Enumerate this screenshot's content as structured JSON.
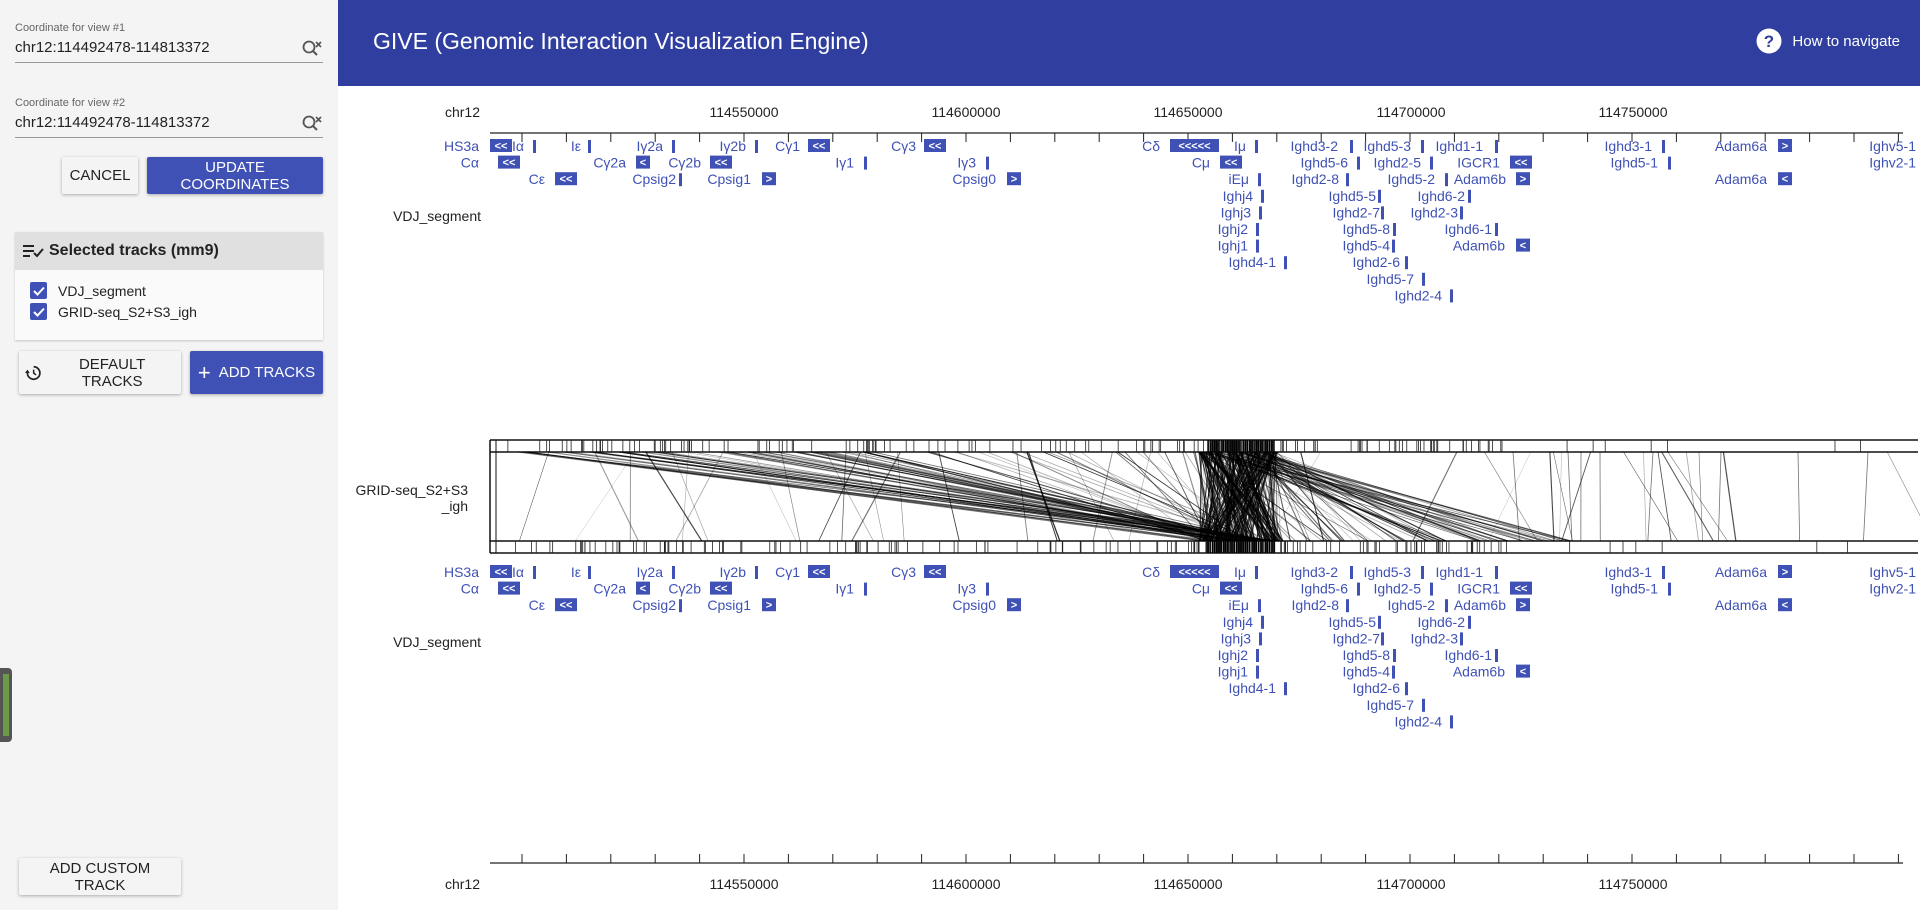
{
  "sidebar": {
    "view1": {
      "label": "Coordinate for view #1",
      "value": "chr12:114492478-114813372"
    },
    "view2": {
      "label": "Coordinate for view #2",
      "value": "chr12:114492478-114813372"
    },
    "cancel_label": "CANCEL",
    "update_label": "UPDATE COORDINATES",
    "tracks_title": "Selected tracks (mm9)",
    "tracks": [
      "VDJ_segment",
      "GRID-seq_S2+S3_igh"
    ],
    "default_tracks_label": "DEFAULT TRACKS",
    "add_tracks_label": "ADD TRACKS",
    "add_custom_label": "ADD CUSTOM TRACK"
  },
  "header": {
    "title": "GIVE (Genomic Interaction Visualization Engine)",
    "help_label": "How to navigate"
  },
  "viewer": {
    "chromosome": "chr12",
    "ticks": [
      "114550000",
      "114600000",
      "114650000",
      "114700000",
      "114750000"
    ],
    "track_labels": {
      "vdj_top": "VDJ_segment",
      "grid_line1": "GRID-seq_S2+S3",
      "grid_line2": "_igh",
      "vdj_bottom": "VDJ_segment"
    },
    "genes": [
      {
        "n": "HS3a",
        "g": "<<"
      },
      {
        "n": "Iα",
        "g": "|"
      },
      {
        "n": "Iε",
        "g": "|"
      },
      {
        "n": "Iγ2a",
        "g": "|"
      },
      {
        "n": "Iγ2b",
        "g": "|"
      },
      {
        "n": "Cγ1",
        "g": "<<"
      },
      {
        "n": "Cγ3",
        "g": "<<"
      },
      {
        "n": "Cδ",
        "g": "<<<<<"
      },
      {
        "n": "Iμ",
        "g": "|"
      },
      {
        "n": "Ighd3-2",
        "g": "|"
      },
      {
        "n": "Ighd5-3",
        "g": "|"
      },
      {
        "n": "Ighd1-1",
        "g": "|"
      },
      {
        "n": "Ighd3-1",
        "g": "|"
      },
      {
        "n": "Adam6a",
        "g": ">"
      },
      {
        "n": "Ighv5-1",
        "g": "|"
      },
      {
        "n": "Cα",
        "g": "<<"
      },
      {
        "n": "Cγ2a",
        "g": "<"
      },
      {
        "n": "Cγ2b",
        "g": "<<"
      },
      {
        "n": "Iγ1",
        "g": "|"
      },
      {
        "n": "Iγ3",
        "g": "|"
      },
      {
        "n": "Cμ",
        "g": "<<"
      },
      {
        "n": "Ighd5-6",
        "g": "|"
      },
      {
        "n": "Ighd2-5",
        "g": "|"
      },
      {
        "n": "IGCR1",
        "g": "<<"
      },
      {
        "n": "Ighd5-1",
        "g": "|"
      },
      {
        "n": "Ighv2-1",
        "g": ""
      },
      {
        "n": "Cε",
        "g": "<<"
      },
      {
        "n": "Cpsig2",
        "g": "|"
      },
      {
        "n": "Cpsig1",
        "g": ">"
      },
      {
        "n": "Cpsig0",
        "g": ">"
      },
      {
        "n": "iEμ",
        "g": "|"
      },
      {
        "n": "Ighd2-8",
        "g": "|"
      },
      {
        "n": "Ighd5-2",
        "g": "|"
      },
      {
        "n": "Adam6b",
        "g": ">"
      },
      {
        "n": "Adam6a",
        "g": "<"
      },
      {
        "n": "Ighj4",
        "g": "|"
      },
      {
        "n": "Ighd5-5",
        "g": "|"
      },
      {
        "n": "Ighd6-2",
        "g": "|"
      },
      {
        "n": "Ighj3",
        "g": "|"
      },
      {
        "n": "Ighd2-7",
        "g": "|"
      },
      {
        "n": "Ighd2-3",
        "g": "|"
      },
      {
        "n": "Ighj2",
        "g": "|"
      },
      {
        "n": "Ighd5-8",
        "g": "|"
      },
      {
        "n": "Ighd6-1",
        "g": "|"
      },
      {
        "n": "Ighj1",
        "g": "|"
      },
      {
        "n": "Ighd5-4",
        "g": "|"
      },
      {
        "n": "Adam6b",
        "g": "<"
      },
      {
        "n": "Ighd4-1",
        "g": "|"
      },
      {
        "n": "Ighd2-6",
        "g": "|"
      },
      {
        "n": "Ighd5-7",
        "g": "|"
      },
      {
        "n": "Ighd2-4",
        "g": "|"
      }
    ],
    "colors": {
      "gene": "#3f51b5",
      "header": "#303f9f",
      "primary": "#3f51b5"
    }
  }
}
